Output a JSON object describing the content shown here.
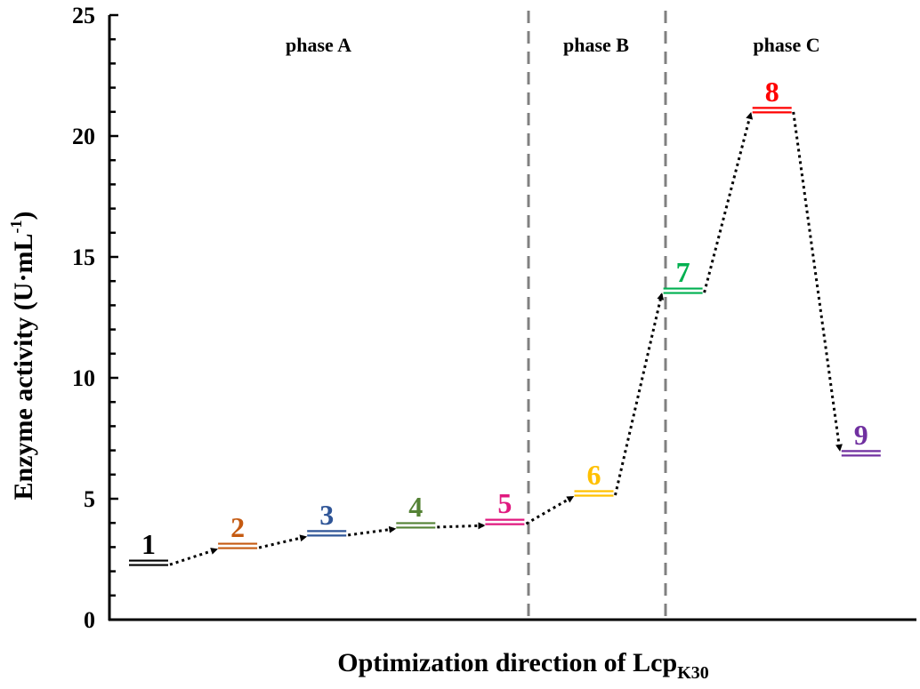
{
  "chart_data": {
    "type": "line",
    "title": "",
    "xlabel": "Optimization direction of Lcp",
    "xlabel_subscript": "K30",
    "ylabel": "Enzyme activity  (U·mL",
    "ylabel_superscript": "-1",
    "ylabel_close": ")",
    "ylim": [
      0,
      25
    ],
    "yticks": [
      "0",
      "5",
      "10",
      "15",
      "20",
      "25"
    ],
    "grid": false,
    "phases": [
      "phase  A",
      "phase  B",
      "phase  C"
    ],
    "points": [
      {
        "label": "1",
        "value": 2.35,
        "color": "#000000"
      },
      {
        "label": "2",
        "value": 3.05,
        "color": "#C55A11"
      },
      {
        "label": "3",
        "value": 3.57,
        "color": "#2F5597"
      },
      {
        "label": "4",
        "value": 3.9,
        "color": "#548235"
      },
      {
        "label": "5",
        "value": 4.04,
        "color": "#E0197F"
      },
      {
        "label": "6",
        "value": 5.22,
        "color": "#FFC000"
      },
      {
        "label": "7",
        "value": 13.6,
        "color": "#00B050"
      },
      {
        "label": "8",
        "value": 21.07,
        "color": "#FF0000"
      },
      {
        "label": "9",
        "value": 6.88,
        "color": "#7030A0"
      }
    ]
  }
}
